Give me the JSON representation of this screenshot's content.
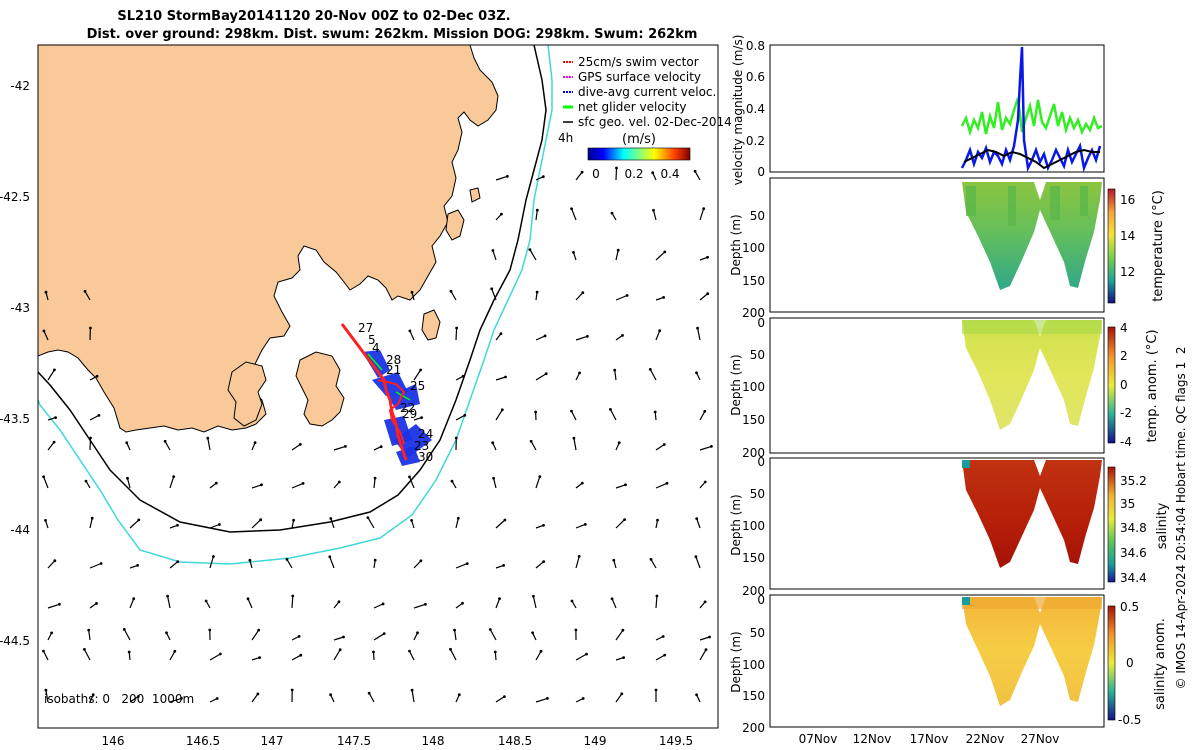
{
  "title": {
    "line1": "SL210 StormBay20141120 20-Nov 00Z to 02-Dec 03Z.",
    "line2": "Dist. over ground: 298km. Dist. swum: 262km. Mission DOG: 298km. Swum: 262km"
  },
  "map": {
    "lon_ticks": [
      "146",
      "146.5",
      "147",
      "147.5",
      "148",
      "148.5",
      "149",
      "149.5"
    ],
    "lat_ticks": [
      "-42",
      "-42.5",
      "-43",
      "-43.5",
      "-44",
      "-44.5"
    ],
    "legend": [
      {
        "label": "25cm/s swim vector",
        "color": "#ff0000"
      },
      {
        "label": "GPS surface velocity",
        "color": "#ff00ff"
      },
      {
        "label": "dive-avg current veloc.",
        "color": "#0000ff"
      },
      {
        "label": "net glider velocity",
        "color": "#00ff00"
      },
      {
        "label": "sfc geo. vel. 02-Dec-2014",
        "color": "#000000"
      }
    ],
    "legend_note": "4h",
    "colorbar": {
      "label": "(m/s)",
      "ticks": [
        "0",
        "0.2",
        "0.4"
      ]
    },
    "isobaths_label": "isobaths: 0   200  1000m",
    "day_labels": [
      "27",
      "5",
      "4",
      "28",
      "21",
      "25",
      "22",
      "29",
      "24",
      "23",
      "30"
    ],
    "colors": {
      "land": "#f9c99a",
      "isobath_200": "#000000",
      "isobath_1000": "#3fd8d8",
      "track": "#ff0000",
      "current": "#0000ff"
    }
  },
  "timeseries": {
    "ylabel": "velocity magnitude (m/s)",
    "yticks": [
      "0",
      "0.2",
      "0.4",
      "0.6",
      "0.8"
    ],
    "xticks": [
      "07Nov",
      "12Nov",
      "17Nov",
      "22Nov",
      "27Nov"
    ]
  },
  "sections": [
    {
      "name": "temperature",
      "depth_label": "Depth (m)",
      "yticks": [
        "50",
        "100",
        "150",
        "200"
      ],
      "colorbar_label": "temperature (°C)",
      "cticks": [
        "16",
        "14",
        "12"
      ]
    },
    {
      "name": "temp-anom",
      "depth_label": "Depth (m)",
      "yticks": [
        "0",
        "50",
        "100",
        "150",
        "200"
      ],
      "colorbar_label": "temp. anom. (°C)",
      "cticks": [
        "4",
        "2",
        "0",
        "-2",
        "-4"
      ]
    },
    {
      "name": "salinity",
      "depth_label": "Depth (m)",
      "yticks": [
        "0",
        "50",
        "100",
        "150",
        "200"
      ],
      "colorbar_label": "salinity",
      "cticks": [
        "35.2",
        "35",
        "34.8",
        "34.6",
        "34.4"
      ]
    },
    {
      "name": "salinity-anom",
      "depth_label": "Depth (m)",
      "yticks": [
        "0",
        "50",
        "100",
        "150",
        "200"
      ],
      "colorbar_label": "salinity anom.",
      "cticks": [
        "0.5",
        "0",
        "-0.5"
      ]
    }
  ],
  "footer": {
    "credit": "© IMOS 14-Apr-2024 20:54:04 Hobart time. QC flags 1  2"
  }
}
